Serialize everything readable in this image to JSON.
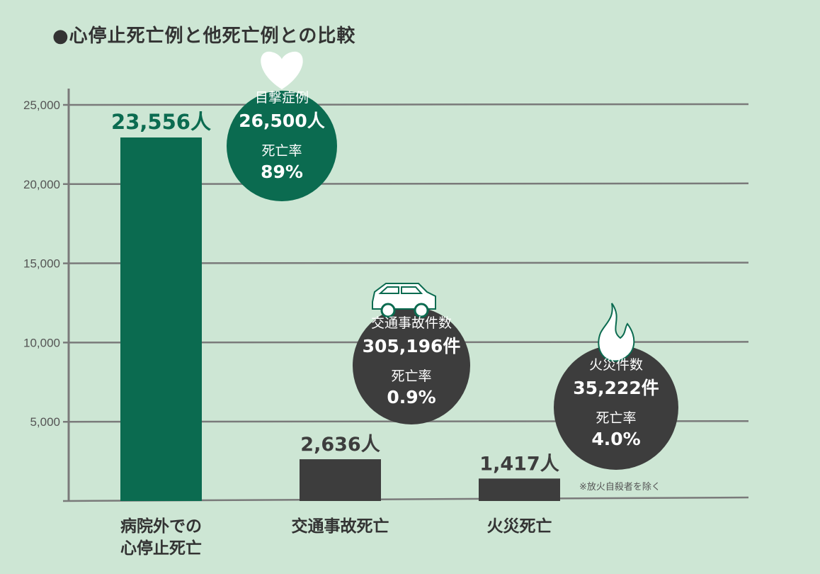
{
  "chart_data": {
    "type": "bar",
    "title": "●心停止死亡例と他死亡例との比較",
    "xlabel": "",
    "ylabel": "",
    "ylim": [
      0,
      25000
    ],
    "yticks": [
      5000,
      10000,
      15000,
      20000,
      25000
    ],
    "ytick_labels": [
      "5,000",
      "10,000",
      "15,000",
      "20,000",
      "25,000"
    ],
    "grid": true,
    "categories": [
      [
        "病院外での",
        "心停止死亡"
      ],
      [
        "交通事故死亡"
      ],
      [
        "火災死亡"
      ]
    ],
    "values": [
      23556,
      2636,
      1417
    ],
    "value_labels": [
      "23,556人",
      "2,636人",
      "1,417人"
    ],
    "colors": [
      "#0b6b50",
      "#3d3d3d",
      "#3d3d3d"
    ],
    "annotations": [
      {
        "icon": "heart-icon",
        "lines": [
          "目撃症例",
          "26,500人",
          "死亡率",
          "89%"
        ],
        "color": "#0b6b50"
      },
      {
        "icon": "car-icon",
        "lines": [
          "交通事故件数",
          "305,196件",
          "死亡率",
          "0.9%"
        ],
        "color": "#3d3d3d"
      },
      {
        "icon": "fire-icon",
        "lines": [
          "火災件数",
          "35,222件",
          "死亡率",
          "4.0%"
        ],
        "color": "#3d3d3d"
      }
    ],
    "footnote": "※放火自殺者を除く"
  }
}
